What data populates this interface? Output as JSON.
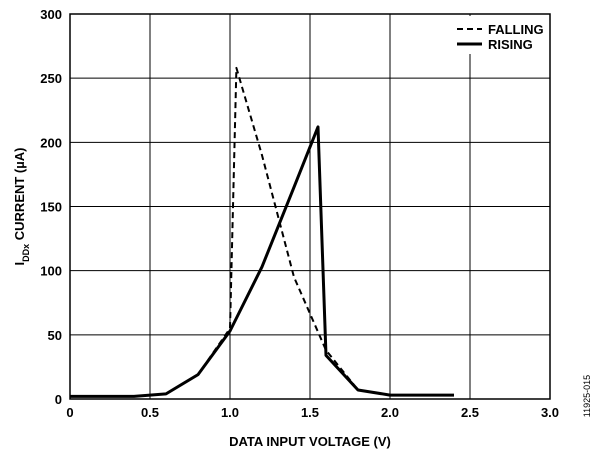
{
  "chart_data": {
    "type": "line",
    "xlabel": "DATA INPUT VOLTAGE (V)",
    "ylabel": {
      "prefix": "I",
      "subscript": "DDx",
      "suffix": " CURRENT (µA)"
    },
    "xlim": [
      0,
      3.0
    ],
    "ylim": [
      0,
      300
    ],
    "x_ticks": [
      "0",
      "0.5",
      "1.0",
      "1.5",
      "2.0",
      "2.5",
      "3.0"
    ],
    "x_tick_values": [
      0,
      0.5,
      1.0,
      1.5,
      2.0,
      2.5,
      3.0
    ],
    "y_ticks": [
      "0",
      "50",
      "100",
      "150",
      "200",
      "250",
      "300"
    ],
    "y_tick_values": [
      0,
      50,
      100,
      150,
      200,
      250,
      300
    ],
    "grid": true,
    "legend_position": "top-right",
    "series": [
      {
        "name": "FALLING",
        "style": "dashed",
        "x": [
          0,
          0.4,
          0.6,
          0.8,
          1.0,
          1.04,
          1.2,
          1.4,
          1.6,
          1.8,
          2.0,
          2.4
        ],
        "y": [
          2,
          2,
          4,
          19,
          55,
          258,
          190,
          95,
          38,
          7,
          3,
          3
        ]
      },
      {
        "name": "RISING",
        "style": "solid",
        "x": [
          0,
          0.4,
          0.6,
          0.8,
          1.0,
          1.2,
          1.4,
          1.55,
          1.6,
          1.8,
          2.0,
          2.4
        ],
        "y": [
          2,
          2,
          4,
          19,
          53,
          103,
          165,
          212,
          34,
          7,
          3,
          3
        ]
      }
    ],
    "figure_id": "11925-015"
  }
}
